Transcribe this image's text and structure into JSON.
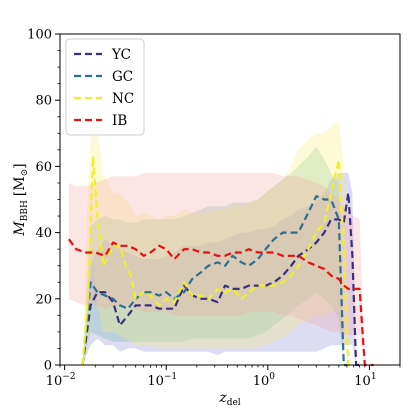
{
  "chart_data": {
    "type": "line",
    "xscale": "log",
    "xlim": [
      0.009,
      20
    ],
    "ylim": [
      0,
      100
    ],
    "xlabel_main": "z",
    "xlabel_sub": "del",
    "ylabel_main": "M",
    "ylabel_sub": "BBH",
    "ylabel_unit": "[M",
    "ylabel_unit_sub": "⊙",
    "ylabel_unit_close": "]",
    "x_ticks": [
      {
        "value": 0.01,
        "base": "10",
        "exp": "−2"
      },
      {
        "value": 0.1,
        "base": "10",
        "exp": "−1"
      },
      {
        "value": 1,
        "base": "10",
        "exp": "0"
      },
      {
        "value": 10,
        "base": "10",
        "exp": "1"
      }
    ],
    "y_ticks": [
      0,
      20,
      40,
      60,
      80,
      100
    ],
    "legend_position": "top-left",
    "series": [
      {
        "name": "YC",
        "color": "#3b2f7f",
        "band_color": "#8080d0",
        "x": [
          0.015,
          0.018,
          0.021,
          0.025,
          0.03,
          0.035,
          0.042,
          0.05,
          0.06,
          0.07,
          0.085,
          0.1,
          0.12,
          0.15,
          0.18,
          0.22,
          0.26,
          0.32,
          0.38,
          0.45,
          0.55,
          0.65,
          0.8,
          0.95,
          1.15,
          1.4,
          1.7,
          2.0,
          2.5,
          3.0,
          3.6,
          4.2,
          5.0,
          5.6,
          6.2,
          6.8,
          7.4,
          8.0
        ],
        "y": [
          0,
          18,
          22,
          22,
          19,
          12,
          15,
          18,
          18,
          18,
          17,
          17,
          17,
          24,
          21,
          20,
          20,
          19,
          24,
          23,
          23,
          24,
          24,
          24,
          25,
          27,
          30,
          33,
          35,
          37,
          40,
          44,
          44,
          43,
          52,
          33,
          0,
          0
        ],
        "upper": [
          0,
          30,
          35,
          38,
          36,
          35,
          34,
          33,
          32,
          32,
          32,
          33,
          34,
          36,
          36,
          36,
          37,
          37,
          38,
          39,
          40,
          40,
          41,
          41,
          42,
          44,
          45,
          47,
          48,
          49,
          52,
          56,
          58,
          58,
          58,
          52,
          0,
          0
        ],
        "lower": [
          0,
          6,
          8,
          6,
          6,
          4,
          5,
          5,
          4,
          4,
          4,
          4,
          4,
          4,
          4,
          4,
          4,
          3,
          4,
          4,
          4,
          4,
          4,
          4,
          4,
          4,
          4,
          4,
          4,
          4,
          5,
          6,
          6,
          6,
          6,
          6,
          0,
          0
        ]
      },
      {
        "name": "GC",
        "color": "#2c6f8f",
        "band_color": "#70b8a0",
        "x": [
          0.015,
          0.018,
          0.021,
          0.025,
          0.03,
          0.035,
          0.042,
          0.05,
          0.06,
          0.07,
          0.085,
          0.1,
          0.12,
          0.15,
          0.18,
          0.22,
          0.26,
          0.32,
          0.38,
          0.45,
          0.55,
          0.65,
          0.8,
          0.95,
          1.15,
          1.4,
          1.7,
          2.0,
          2.5,
          3.0,
          3.6,
          4.2,
          5.0,
          5.6,
          6.0
        ],
        "y": [
          0,
          25,
          22,
          21,
          20,
          18,
          17,
          20,
          22,
          22,
          21,
          22,
          20,
          22,
          26,
          28,
          30,
          31,
          30,
          33,
          31,
          30,
          32,
          35,
          38,
          40,
          40,
          40,
          46,
          51,
          50,
          50,
          44,
          0,
          0
        ],
        "upper": [
          0,
          42,
          44,
          45,
          44,
          44,
          43,
          43,
          44,
          44,
          44,
          44,
          44,
          45,
          46,
          47,
          48,
          48,
          48,
          49,
          49,
          49,
          50,
          52,
          54,
          56,
          58,
          60,
          63,
          66,
          62,
          58,
          55,
          0,
          0
        ],
        "lower": [
          0,
          10,
          9,
          8,
          7,
          7,
          7,
          7,
          7,
          7,
          7,
          7,
          7,
          7,
          8,
          8,
          8,
          8,
          8,
          8,
          8,
          8,
          9,
          10,
          12,
          14,
          16,
          18,
          20,
          22,
          20,
          18,
          14,
          0,
          0
        ]
      },
      {
        "name": "NC",
        "color": "#f0f028",
        "band_color": "#f8f070",
        "x": [
          0.015,
          0.017,
          0.019,
          0.021,
          0.024,
          0.027,
          0.03,
          0.035,
          0.04,
          0.045,
          0.05,
          0.06,
          0.07,
          0.085,
          0.1,
          0.12,
          0.15,
          0.18,
          0.22,
          0.26,
          0.32,
          0.38,
          0.45,
          0.55,
          0.65,
          0.8,
          0.95,
          1.15,
          1.4,
          1.7,
          2.0,
          2.5,
          3.0,
          3.6,
          4.2,
          5.0,
          5.6,
          6.2,
          6.6
        ],
        "y": [
          0,
          20,
          63,
          45,
          30,
          33,
          36,
          36,
          30,
          27,
          20,
          22,
          21,
          18,
          20,
          19,
          25,
          21,
          21,
          20,
          23,
          22,
          23,
          20,
          22,
          24,
          24,
          24,
          25,
          27,
          30,
          35,
          40,
          43,
          52,
          62,
          35,
          0,
          0
        ],
        "upper": [
          0,
          55,
          80,
          70,
          58,
          55,
          52,
          52,
          50,
          48,
          45,
          46,
          45,
          44,
          45,
          45,
          47,
          46,
          46,
          46,
          47,
          47,
          48,
          48,
          49,
          50,
          52,
          54,
          56,
          60,
          65,
          68,
          70,
          70,
          72,
          74,
          60,
          0,
          0
        ],
        "lower": [
          0,
          5,
          30,
          18,
          10,
          10,
          10,
          9,
          8,
          7,
          6,
          6,
          6,
          5,
          5,
          5,
          5,
          5,
          5,
          5,
          5,
          5,
          5,
          5,
          5,
          5,
          6,
          7,
          8,
          10,
          12,
          14,
          15,
          15,
          16,
          16,
          12,
          0,
          0
        ]
      },
      {
        "name": "IB",
        "color": "#e81010",
        "band_color": "#f4a0a0",
        "x": [
          0.011,
          0.013,
          0.016,
          0.02,
          0.025,
          0.03,
          0.035,
          0.042,
          0.05,
          0.06,
          0.07,
          0.085,
          0.1,
          0.12,
          0.15,
          0.18,
          0.22,
          0.26,
          0.32,
          0.38,
          0.45,
          0.55,
          0.65,
          0.8,
          0.95,
          1.15,
          1.4,
          1.7,
          2.0,
          2.5,
          3.0,
          3.6,
          4.2,
          5.0,
          5.6,
          6.2,
          7.0,
          8.0,
          9.0,
          10.0,
          11.0
        ],
        "y": [
          38,
          35,
          34,
          34,
          33,
          37,
          36,
          36,
          35,
          33,
          34,
          36,
          35,
          32,
          35,
          35,
          34,
          34,
          33,
          33,
          34,
          34,
          35,
          34,
          34,
          34,
          33,
          33,
          33,
          31,
          30,
          29,
          27,
          26,
          24,
          23,
          23,
          23,
          0,
          0,
          0
        ],
        "upper": [
          55,
          54,
          54,
          55,
          56,
          57,
          57,
          57,
          57,
          58,
          58,
          58,
          58,
          58,
          58,
          58,
          58,
          58,
          58,
          58,
          58,
          58,
          58,
          58,
          58,
          58,
          57,
          57,
          57,
          56,
          55,
          54,
          52,
          50,
          48,
          46,
          45,
          44,
          0,
          0,
          0
        ],
        "lower": [
          20,
          19,
          18,
          18,
          17,
          18,
          18,
          18,
          17,
          16,
          16,
          16,
          16,
          15,
          15,
          15,
          15,
          15,
          15,
          15,
          15,
          15,
          16,
          16,
          16,
          16,
          15,
          15,
          14,
          13,
          12,
          11,
          10,
          10,
          9,
          9,
          9,
          9,
          0,
          0,
          0
        ]
      }
    ]
  }
}
